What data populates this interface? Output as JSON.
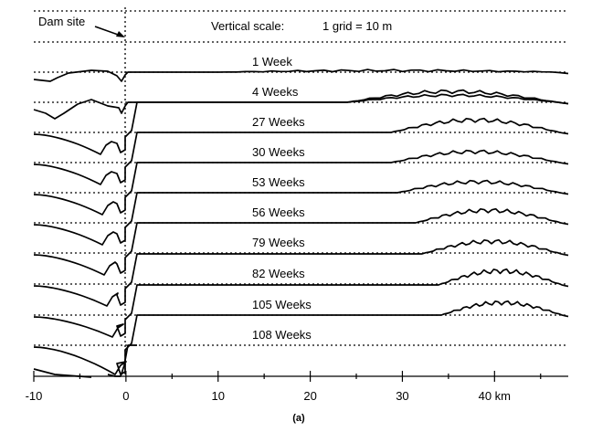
{
  "figure": {
    "dam_site_label": "Dam site",
    "scale_label": "Vertical scale:",
    "scale_value": "1 grid = 10 m",
    "caption": "(a)",
    "x_unit": "km",
    "x_range": [
      -10,
      48
    ],
    "dam_position_km": 0,
    "x_ticks": [
      {
        "value": -10,
        "label": "-10"
      },
      {
        "value": 0,
        "label": "0"
      },
      {
        "value": 10,
        "label": "10"
      },
      {
        "value": 20,
        "label": "20"
      },
      {
        "value": 30,
        "label": "30"
      },
      {
        "value": 40,
        "label": "40 km"
      }
    ]
  },
  "profiles": [
    {
      "label": "1 Week"
    },
    {
      "label": "4 Weeks"
    },
    {
      "label": "27 Weeks"
    },
    {
      "label": "30 Weeks"
    },
    {
      "label": "53 Weeks"
    },
    {
      "label": "56 Weeks"
    },
    {
      "label": "79 Weeks"
    },
    {
      "label": "82 Weeks"
    },
    {
      "label": "105 Weeks"
    },
    {
      "label": "108 Weeks"
    }
  ]
}
